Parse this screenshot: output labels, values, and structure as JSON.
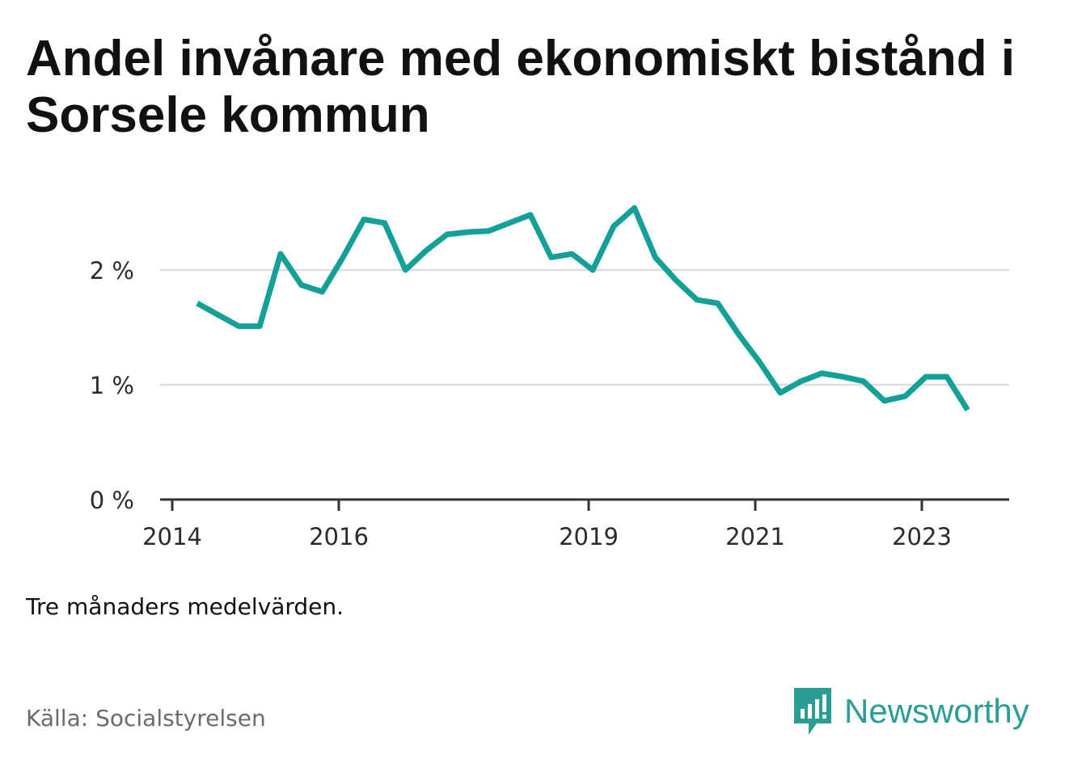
{
  "title": "Andel invånare med ekonomiskt bistånd i Sorsele kommun",
  "note": "Tre månaders medelvärden.",
  "source": "Källa: Socialstyrelsen",
  "brand": {
    "name": "Newsworthy",
    "color": "#2a9d95"
  },
  "colors": {
    "line": "#13a098",
    "grid": "#dddddd",
    "axis": "#333333"
  },
  "chart_data": {
    "type": "line",
    "title": "Andel invånare med ekonomiskt bistånd i Sorsele kommun",
    "xlabel": "",
    "ylabel": "",
    "ylim": [
      0,
      3
    ],
    "grid": true,
    "y_ticks": [
      {
        "value": 0,
        "label": "0 %"
      },
      {
        "value": 1,
        "label": "1 %"
      },
      {
        "value": 2,
        "label": "2 %"
      }
    ],
    "x_ticks": [
      {
        "value": 2014,
        "label": "2014"
      },
      {
        "value": 2016,
        "label": "2016"
      },
      {
        "value": 2019,
        "label": "2019"
      },
      {
        "value": 2021,
        "label": "2021"
      },
      {
        "value": 2023,
        "label": "2023"
      }
    ],
    "xlim": [
      2013.98,
      2024.03
    ],
    "series": [
      {
        "values": [
          {
            "x": 2014.3,
            "y": 1.71
          },
          {
            "x": 2014.55,
            "y": 1.61
          },
          {
            "x": 2014.8,
            "y": 1.51
          },
          {
            "x": 2015.05,
            "y": 1.51
          },
          {
            "x": 2015.3,
            "y": 2.14
          },
          {
            "x": 2015.55,
            "y": 1.87
          },
          {
            "x": 2015.8,
            "y": 1.81
          },
          {
            "x": 2016.05,
            "y": 2.11
          },
          {
            "x": 2016.3,
            "y": 2.44
          },
          {
            "x": 2016.55,
            "y": 2.41
          },
          {
            "x": 2016.8,
            "y": 2.0
          },
          {
            "x": 2017.05,
            "y": 2.17
          },
          {
            "x": 2017.3,
            "y": 2.31
          },
          {
            "x": 2017.55,
            "y": 2.33
          },
          {
            "x": 2017.8,
            "y": 2.34
          },
          {
            "x": 2018.05,
            "y": 2.41
          },
          {
            "x": 2018.3,
            "y": 2.48
          },
          {
            "x": 2018.55,
            "y": 2.11
          },
          {
            "x": 2018.8,
            "y": 2.14
          },
          {
            "x": 2019.05,
            "y": 2.0
          },
          {
            "x": 2019.3,
            "y": 2.38
          },
          {
            "x": 2019.55,
            "y": 2.54
          },
          {
            "x": 2019.8,
            "y": 2.11
          },
          {
            "x": 2020.05,
            "y": 1.91
          },
          {
            "x": 2020.3,
            "y": 1.74
          },
          {
            "x": 2020.55,
            "y": 1.71
          },
          {
            "x": 2020.8,
            "y": 1.44
          },
          {
            "x": 2021.05,
            "y": 1.2
          },
          {
            "x": 2021.3,
            "y": 0.93
          },
          {
            "x": 2021.55,
            "y": 1.03
          },
          {
            "x": 2021.8,
            "y": 1.1
          },
          {
            "x": 2022.05,
            "y": 1.07
          },
          {
            "x": 2022.3,
            "y": 1.03
          },
          {
            "x": 2022.55,
            "y": 0.86
          },
          {
            "x": 2022.8,
            "y": 0.9
          },
          {
            "x": 2023.05,
            "y": 1.07
          },
          {
            "x": 2023.3,
            "y": 1.07
          },
          {
            "x": 2023.55,
            "y": 0.78
          }
        ]
      }
    ]
  }
}
